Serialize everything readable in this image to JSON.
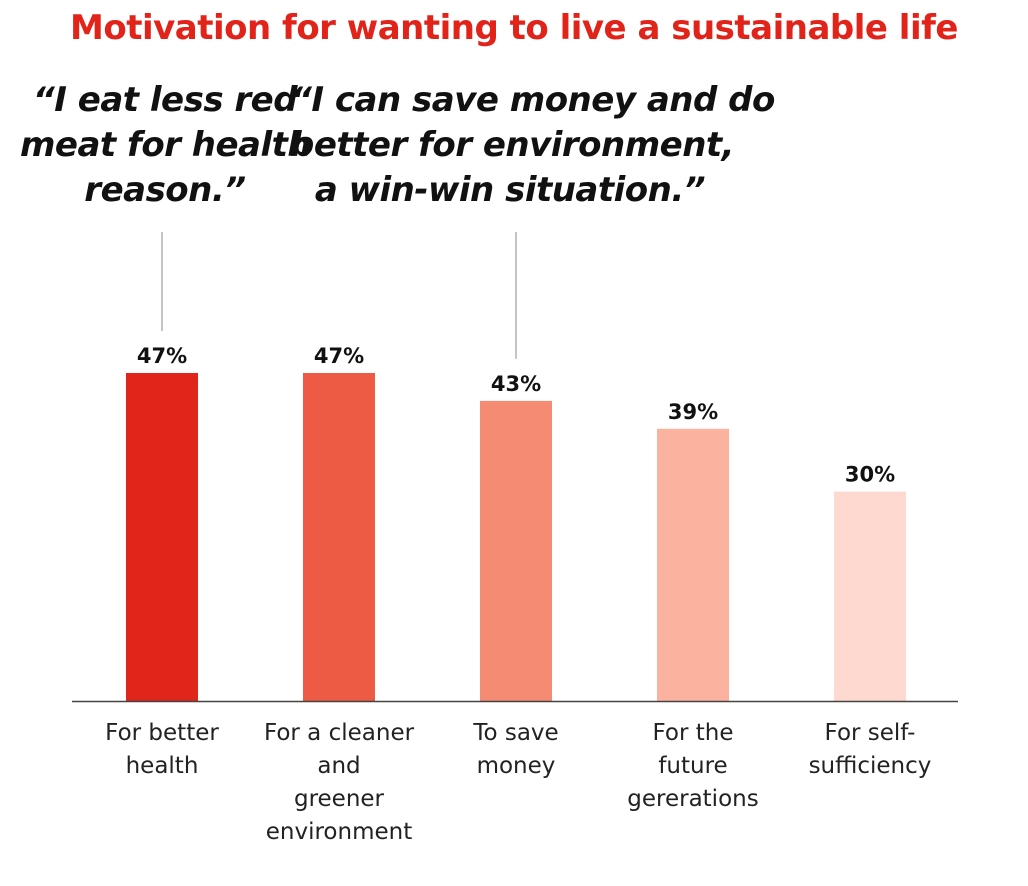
{
  "title": "Motivation for wanting to live a sustainable life",
  "quotes": [
    {
      "lines": [
        "“I eat less red",
        "meat for health",
        "reason.”"
      ],
      "category_index": 0
    },
    {
      "lines": [
        "“I can save money and do",
        "better for environment,",
        "a win-win situation.”"
      ],
      "category_index": 2
    }
  ],
  "chart_data": {
    "type": "bar",
    "title": "Motivation for wanting to live a sustainable life",
    "categories": [
      [
        "For better",
        "health"
      ],
      [
        "For a cleaner",
        "and",
        "greener",
        "environment"
      ],
      [
        "To save",
        "money"
      ],
      [
        "For the",
        "future",
        "gererations"
      ],
      [
        "For self-",
        "sufficiency"
      ]
    ],
    "values": [
      47,
      47,
      43,
      39,
      30
    ],
    "value_labels": [
      "47%",
      "47%",
      "43%",
      "39%",
      "30%"
    ],
    "unit": "%",
    "ylim": [
      0,
      55
    ],
    "bar_colors": [
      "#e0251b",
      "#ed5b45",
      "#f68b73",
      "#fbb3a0",
      "#fdd9cf"
    ],
    "xlabel": "",
    "ylabel": "",
    "grid": false,
    "legend": "none"
  }
}
